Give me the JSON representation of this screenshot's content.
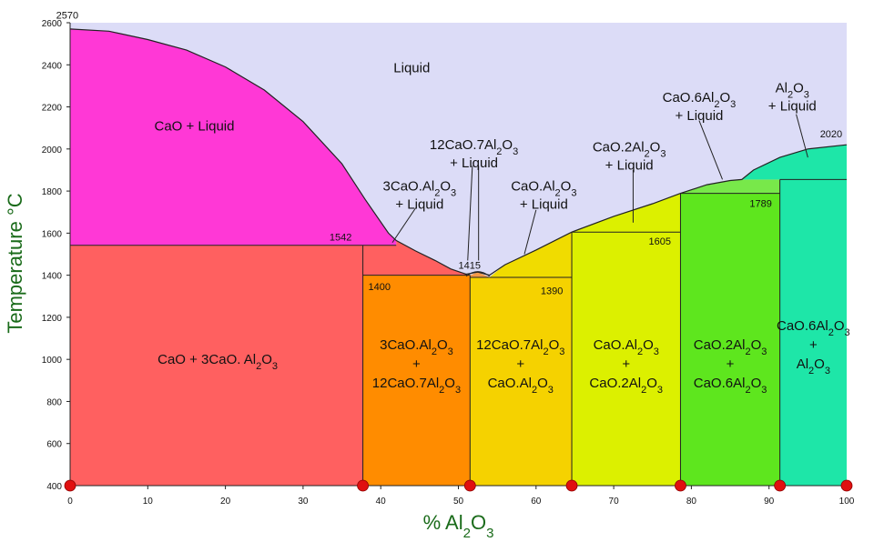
{
  "chart_data": {
    "type": "phase-diagram",
    "xlabel": "% Al2O3",
    "ylabel": "Temperature °C",
    "xlim": [
      0,
      100
    ],
    "ylim": [
      400,
      2600
    ],
    "x_ticks": [
      0,
      10,
      20,
      30,
      40,
      50,
      60,
      70,
      80,
      90,
      100
    ],
    "y_ticks": [
      400,
      600,
      800,
      1000,
      1200,
      1400,
      1600,
      1800,
      2000,
      2200,
      2400,
      2600
    ],
    "compositions": [
      0,
      37.7,
      51.5,
      64.6,
      78.6,
      91.4,
      100
    ],
    "liquidus": [
      [
        0,
        2570
      ],
      [
        5,
        2560
      ],
      [
        10,
        2520
      ],
      [
        15,
        2470
      ],
      [
        20,
        2390
      ],
      [
        25,
        2280
      ],
      [
        30,
        2130
      ],
      [
        35,
        1930
      ],
      [
        38,
        1760
      ],
      [
        41,
        1600
      ],
      [
        42,
        1565
      ],
      [
        44.5,
        1515
      ],
      [
        47,
        1470
      ],
      [
        49,
        1430
      ],
      [
        51,
        1405
      ],
      [
        52.5,
        1415
      ],
      [
        54,
        1400
      ],
      [
        56,
        1450
      ],
      [
        60,
        1520
      ],
      [
        64.6,
        1605
      ],
      [
        70,
        1680
      ],
      [
        75,
        1740
      ],
      [
        78.6,
        1789
      ],
      [
        82,
        1830
      ],
      [
        85,
        1850
      ],
      [
        86.5,
        1855
      ],
      [
        88,
        1900
      ],
      [
        91.4,
        1960
      ],
      [
        95,
        2000
      ],
      [
        100,
        2020
      ]
    ],
    "invariant_temperatures": [
      {
        "value": 2570,
        "label": "2570"
      },
      {
        "value": 1542,
        "label": "1542"
      },
      {
        "value": 1400,
        "label": "1400"
      },
      {
        "value": 1415,
        "label": "1415"
      },
      {
        "value": 1390,
        "label": "1390"
      },
      {
        "value": 1605,
        "label": "1605"
      },
      {
        "value": 1789,
        "label": "1789"
      },
      {
        "value": 2020,
        "label": "2020"
      }
    ],
    "regions": [
      {
        "id": "liquid",
        "color": "#dcdcf7",
        "lines": [
          "Liquid"
        ]
      },
      {
        "id": "cao-liquid",
        "color": "#ff38d6",
        "lines": [
          "CaO + Liquid"
        ]
      },
      {
        "id": "c3a-liquid",
        "color": "#ff6060",
        "lines": [
          "3CaO.Al2O3",
          "+ Liquid"
        ]
      },
      {
        "id": "c12a7-liquid",
        "color": "#f39a4a",
        "lines": [
          "12CaO.7Al2O3",
          "+ Liquid"
        ]
      },
      {
        "id": "ca-liquid",
        "color": "#f0dc00",
        "lines": [
          "CaO.Al2O3",
          "+ Liquid"
        ]
      },
      {
        "id": "ca2-liquid",
        "color": "#dcf000",
        "lines": [
          "CaO.2Al2O3",
          "+ Liquid"
        ]
      },
      {
        "id": "ca6-liquid",
        "color": "#78e84a",
        "lines": [
          "CaO.6Al2O3",
          "+ Liquid"
        ]
      },
      {
        "id": "al2o3-liquid",
        "color": "#1ee6a8",
        "lines": [
          "Al2O3",
          "+ Liquid"
        ]
      },
      {
        "id": "cao-c3a",
        "color": "#ff6060",
        "lines": [
          "CaO + 3CaO. Al2O3"
        ]
      },
      {
        "id": "c3a-c12a7",
        "color": "#ff8c00",
        "lines": [
          "3CaO.Al2O3",
          "+",
          "12CaO.7Al2O3"
        ]
      },
      {
        "id": "c12a7-ca",
        "color": "#f5d200",
        "lines": [
          "12CaO.7Al2O3",
          "+",
          "CaO.Al2O3"
        ]
      },
      {
        "id": "ca-ca2",
        "color": "#dcf000",
        "lines": [
          "CaO.Al2O3",
          "+",
          "CaO.2Al2O3"
        ]
      },
      {
        "id": "ca2-ca6",
        "color": "#5ee61e",
        "lines": [
          "CaO.2Al2O3",
          "+",
          "CaO.6Al2O3"
        ]
      },
      {
        "id": "ca6-al2o3",
        "color": "#1ee6a8",
        "lines": [
          "CaO.6Al2O3",
          "+",
          "Al2O3"
        ]
      }
    ],
    "marker_color": "#e01010"
  }
}
